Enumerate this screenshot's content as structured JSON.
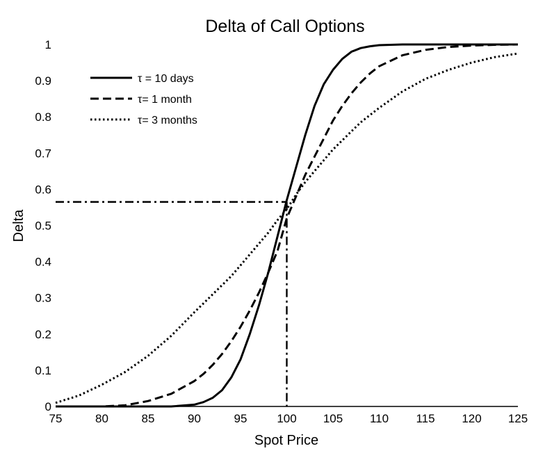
{
  "chart_data": {
    "type": "line",
    "title": "Delta of Call Options",
    "xlabel": "Spot Price",
    "ylabel": "Delta",
    "xlim": [
      75,
      125
    ],
    "ylim": [
      0,
      1
    ],
    "x_ticks": [
      "75",
      "80",
      "85",
      "90",
      "95",
      "100",
      "105",
      "110",
      "115",
      "120",
      "125"
    ],
    "y_ticks": [
      "0",
      "0.1",
      "0.2",
      "0.3",
      "0.4",
      "0.5",
      "0.6",
      "0.7",
      "0.8",
      "0.9",
      "1"
    ],
    "grid": false,
    "legend_position": "top-left",
    "x": [
      75,
      77.5,
      80,
      82.5,
      85,
      87.5,
      90,
      91,
      92,
      93,
      94,
      95,
      96,
      97,
      98,
      99,
      100,
      101,
      102,
      103,
      104,
      105,
      106,
      107,
      108,
      109,
      110,
      112.5,
      115,
      117.5,
      120,
      122.5,
      125
    ],
    "series": [
      {
        "name": "τ = 10 days",
        "dash": "solid",
        "values": [
          0,
          0,
          0,
          0,
          0,
          0,
          0.005,
          0.012,
          0.024,
          0.045,
          0.08,
          0.13,
          0.2,
          0.28,
          0.37,
          0.47,
          0.57,
          0.66,
          0.75,
          0.83,
          0.89,
          0.93,
          0.96,
          0.98,
          0.99,
          0.995,
          0.998,
          1,
          1,
          1,
          1,
          1,
          1
        ]
      },
      {
        "name": "τ= 1 month",
        "dash": "dashed",
        "values": [
          0,
          0,
          0,
          0.003,
          0.015,
          0.035,
          0.07,
          0.09,
          0.115,
          0.145,
          0.18,
          0.22,
          0.265,
          0.315,
          0.37,
          0.43,
          0.52,
          0.58,
          0.64,
          0.69,
          0.74,
          0.79,
          0.83,
          0.865,
          0.895,
          0.92,
          0.94,
          0.97,
          0.985,
          0.993,
          0.997,
          0.999,
          1
        ]
      },
      {
        "name": "τ= 3 months",
        "dash": "dotted",
        "values": [
          0.01,
          0.03,
          0.06,
          0.095,
          0.14,
          0.195,
          0.26,
          0.285,
          0.31,
          0.335,
          0.36,
          0.39,
          0.42,
          0.45,
          0.48,
          0.515,
          0.545,
          0.585,
          0.62,
          0.65,
          0.68,
          0.71,
          0.735,
          0.76,
          0.785,
          0.805,
          0.825,
          0.87,
          0.905,
          0.93,
          0.95,
          0.965,
          0.975
        ]
      }
    ],
    "reference_lines": {
      "horizontal_y": 0.565,
      "vertical_x": 100
    }
  }
}
